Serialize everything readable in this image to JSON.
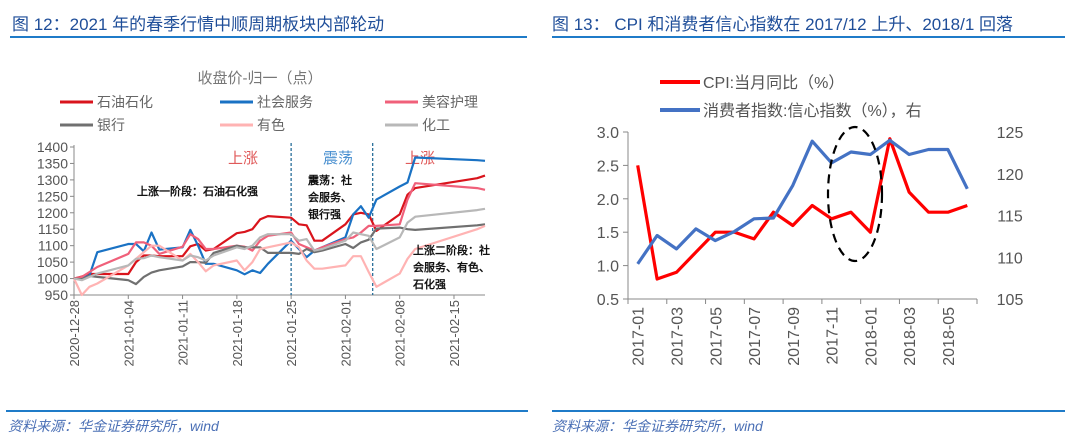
{
  "panels": {
    "left": {
      "title": "图 12：2021 年的春季行情中顺周期板块内部轮动",
      "source": "资料来源：华金证券研究所，wind"
    },
    "right": {
      "title": "图 13：  CPI 和消费者信心指数在 2017/12 上升、2018/1 回落",
      "source": "资料来源：华金证券研究所，wind"
    }
  },
  "chart_data": [
    {
      "type": "line",
      "title": "收盘价-归一（点）",
      "ylim": [
        950,
        1400
      ],
      "yticks": [
        950,
        1000,
        1050,
        1100,
        1150,
        1200,
        1250,
        1300,
        1350,
        1400
      ],
      "xticks": [
        "2020-12-28",
        "2021-01-04",
        "2021-01-11",
        "2021-01-18",
        "2021-01-25",
        "2021-02-01",
        "2021-02-08",
        "2021-02-15"
      ],
      "xlim": [
        "2020-12-28",
        "2021-02-19"
      ],
      "grid": false,
      "legend": "top",
      "x": [
        "2020-12-28",
        "2020-12-29",
        "2020-12-30",
        "2020-12-31",
        "2021-01-04",
        "2021-01-05",
        "2021-01-06",
        "2021-01-07",
        "2021-01-08",
        "2021-01-11",
        "2021-01-12",
        "2021-01-13",
        "2021-01-14",
        "2021-01-15",
        "2021-01-18",
        "2021-01-19",
        "2021-01-20",
        "2021-01-21",
        "2021-01-22",
        "2021-01-25",
        "2021-01-26",
        "2021-01-27",
        "2021-01-28",
        "2021-01-29",
        "2021-02-01",
        "2021-02-02",
        "2021-02-03",
        "2021-02-04",
        "2021-02-05",
        "2021-02-08",
        "2021-02-09",
        "2021-02-10",
        "2021-02-18",
        "2021-02-19"
      ],
      "series": [
        {
          "name": "石油石化",
          "color": "#d9141c",
          "values": [
            1000,
            1006,
            1014,
            1014,
            1014,
            1050,
            1070,
            1070,
            1068,
            1068,
            1098,
            1105,
            1085,
            1090,
            1138,
            1142,
            1150,
            1180,
            1190,
            1185,
            1165,
            1162,
            1115,
            1115,
            1165,
            1195,
            1200,
            1195,
            1145,
            1195,
            1255,
            1275,
            1305,
            1313
          ]
        },
        {
          "name": "社会服务",
          "color": "#1a72c4",
          "values": [
            1000,
            1000,
            1010,
            1080,
            1105,
            1105,
            1083,
            1140,
            1088,
            1095,
            1148,
            1100,
            1045,
            1045,
            1025,
            1013,
            1025,
            1017,
            1045,
            1115,
            1090,
            1065,
            1085,
            1095,
            1125,
            1195,
            1220,
            1185,
            1240,
            1280,
            1292,
            1368,
            1360,
            1358
          ]
        },
        {
          "name": "美容护理",
          "color": "#f0607a",
          "values": [
            1000,
            1005,
            1020,
            1035,
            1075,
            1110,
            1110,
            1100,
            1075,
            1097,
            1135,
            1120,
            1090,
            1090,
            1100,
            1097,
            1085,
            1115,
            1130,
            1140,
            1105,
            1095,
            1085,
            1095,
            1120,
            1125,
            1140,
            1160,
            1160,
            1165,
            1240,
            1290,
            1275,
            1270
          ]
        },
        {
          "name": "银行",
          "color": "#707070",
          "values": [
            1000,
            998,
            1008,
            1005,
            995,
            983,
            1005,
            1018,
            1025,
            1037,
            1050,
            1050,
            1048,
            1078,
            1100,
            1095,
            1095,
            1095,
            1078,
            1078,
            1075,
            1090,
            1080,
            1085,
            1105,
            1093,
            1110,
            1118,
            1152,
            1155,
            1150,
            1148,
            1162,
            1165
          ]
        },
        {
          "name": "有色",
          "color": "#ffb3b3",
          "values": [
            1000,
            950,
            975,
            985,
            1040,
            1060,
            1080,
            1100,
            1100,
            1055,
            1075,
            1050,
            1022,
            1040,
            1055,
            1025,
            1050,
            1090,
            1095,
            1110,
            1095,
            1055,
            1030,
            1030,
            1040,
            1068,
            1068,
            1020,
            975,
            1015,
            1060,
            1090,
            1150,
            1160
          ]
        },
        {
          "name": "化工",
          "color": "#b8b8b8",
          "values": [
            1000,
            995,
            1005,
            1015,
            1040,
            1060,
            1062,
            1070,
            1065,
            1055,
            1070,
            1065,
            1055,
            1070,
            1095,
            1090,
            1100,
            1125,
            1135,
            1135,
            1115,
            1120,
            1085,
            1090,
            1115,
            1140,
            1135,
            1130,
            1090,
            1125,
            1170,
            1188,
            1208,
            1212
          ]
        }
      ],
      "dividers": [
        "2021-01-25",
        "2021-02-04"
      ],
      "phase_labels": [
        {
          "text": "上涨",
          "color": "#e05a5a"
        },
        {
          "text": "震荡",
          "color": "#4a90d0"
        },
        {
          "text": "上涨",
          "color": "#e05a5a"
        }
      ],
      "annotations": [
        [
          "上涨一阶段：石油石化强"
        ],
        [
          "震荡：社",
          "会服务、",
          "银行强"
        ],
        [
          "上涨二阶段：社",
          "会服务、有色、",
          "石化强"
        ]
      ]
    },
    {
      "type": "line",
      "categories": [
        "2017-01",
        "2017-02",
        "2017-03",
        "2017-04",
        "2017-05",
        "2017-06",
        "2017-07",
        "2017-08",
        "2017-09",
        "2017-10",
        "2017-11",
        "2017-12",
        "2018-01",
        "2018-02",
        "2018-03",
        "2018-04",
        "2018-05",
        "2018-06"
      ],
      "xtick_labels": [
        "2017-01",
        "2017-03",
        "2017-05",
        "2017-07",
        "2017-09",
        "2017-11",
        "2018-01",
        "2018-03",
        "2018-05"
      ],
      "ylim": [
        0.5,
        3.0
      ],
      "yticks": [
        "0.5",
        "1.0",
        "1.5",
        "2.0",
        "2.5",
        "3.0"
      ],
      "y2lim": [
        105,
        125
      ],
      "y2ticks": [
        "105",
        "110",
        "115",
        "120",
        "125"
      ],
      "grid": false,
      "legend": "top",
      "series": [
        {
          "name": "CPI:当月同比（%）",
          "axis": "left",
          "color": "#ff0000",
          "values": [
            2.5,
            0.8,
            0.9,
            1.2,
            1.5,
            1.5,
            1.4,
            1.8,
            1.6,
            1.9,
            1.7,
            1.8,
            1.5,
            2.9,
            2.1,
            1.8,
            1.8,
            1.9
          ]
        },
        {
          "name": "消费者指数:信心指数（%），右",
          "axis": "right",
          "color": "#4472c4",
          "values": [
            109.2,
            112.6,
            111.0,
            113.4,
            112.0,
            113.1,
            114.6,
            114.7,
            118.6,
            123.9,
            121.3,
            122.6,
            122.3,
            124.0,
            122.3,
            122.9,
            122.9,
            118.2
          ]
        }
      ],
      "highlight": "dashed ellipse around 2017-12 to 2018-01"
    }
  ]
}
